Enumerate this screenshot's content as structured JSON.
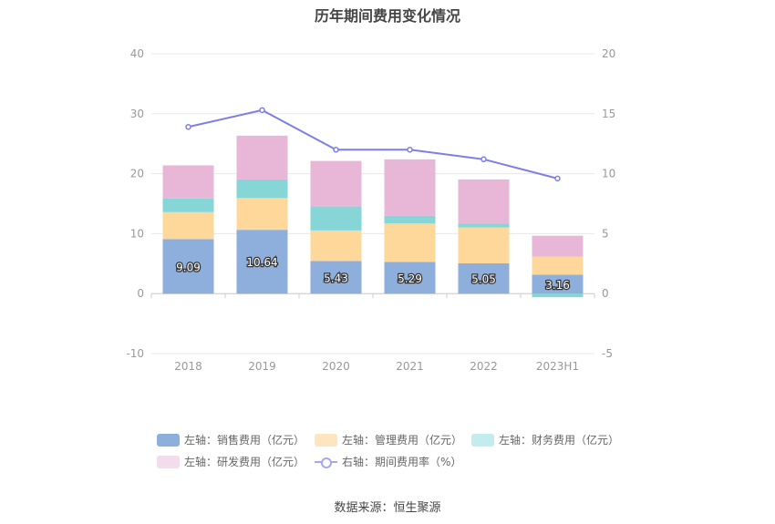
{
  "title": "历年期间费用变化情况",
  "source": "数据来源：恒生聚源",
  "colors": {
    "sales": "#8eaedc",
    "admin": "#fdd89a",
    "finance": "#86d6d8",
    "rnd": "#e8b7d8",
    "rate": "#7b7fe6",
    "axis_text": "#999999",
    "grid": "#e8e8e8",
    "label_bg": "#f0f0f0"
  },
  "legend": [
    {
      "label": "左轴：销售费用（亿元）",
      "color": "#8eaedc",
      "type": "bar"
    },
    {
      "label": "左轴：管理费用（亿元）",
      "color": "#fde5bf",
      "type": "bar"
    },
    {
      "label": "左轴：财务费用（亿元）",
      "color": "#c2eced",
      "type": "bar"
    },
    {
      "label": "左轴：研发费用（亿元）",
      "color": "#f3dcec",
      "type": "bar"
    },
    {
      "label": "右轴：期间费用率（%）",
      "color": "#a5a8ef",
      "type": "line"
    }
  ],
  "chart_data": {
    "type": "bar",
    "stacked": true,
    "categories": [
      "2018",
      "2019",
      "2020",
      "2021",
      "2022",
      "2023H1"
    ],
    "left_axis": {
      "ylim": [
        -10,
        40
      ],
      "ticks": [
        -10,
        0,
        10,
        20,
        30,
        40
      ]
    },
    "right_axis": {
      "ylim": [
        -5,
        20
      ],
      "ticks": [
        -5,
        0,
        5,
        10,
        15,
        20
      ]
    },
    "series": [
      {
        "name": "左轴：销售费用（亿元）",
        "axis": "left",
        "values": [
          9.09,
          10.64,
          5.43,
          5.29,
          5.05,
          3.16
        ],
        "show_labels": true
      },
      {
        "name": "左轴：管理费用（亿元）",
        "axis": "left",
        "values": [
          4.5,
          5.3,
          5.1,
          6.4,
          6.0,
          3.0
        ]
      },
      {
        "name": "左轴：财务费用（亿元）",
        "axis": "left",
        "values": [
          2.3,
          3.1,
          4.0,
          1.3,
          0.6,
          -0.6
        ]
      },
      {
        "name": "左轴：研发费用（亿元）",
        "axis": "left",
        "values": [
          5.5,
          7.3,
          7.6,
          9.4,
          7.4,
          3.5
        ]
      },
      {
        "name": "右轴：期间费用率（%）",
        "axis": "right",
        "type": "line",
        "values": [
          13.9,
          15.3,
          12.0,
          12.0,
          11.2,
          9.6
        ]
      }
    ],
    "legend_position": "bottom",
    "grid": true
  }
}
